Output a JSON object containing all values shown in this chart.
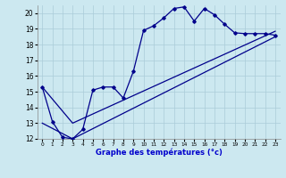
{
  "xlabel": "Graphe des températures (°c)",
  "xlim": [
    -0.5,
    23.5
  ],
  "ylim": [
    12,
    20.5
  ],
  "yticks": [
    12,
    13,
    14,
    15,
    16,
    17,
    18,
    19,
    20
  ],
  "xticks": [
    0,
    1,
    2,
    3,
    4,
    5,
    6,
    7,
    8,
    9,
    10,
    11,
    12,
    13,
    14,
    15,
    16,
    17,
    18,
    19,
    20,
    21,
    22,
    23
  ],
  "bg_color": "#cce8f0",
  "grid_color": "#aaccd8",
  "line_color": "#00008b",
  "line1_x": [
    0,
    1,
    2,
    3,
    4,
    5,
    6,
    7,
    8,
    9,
    10,
    11,
    12,
    13,
    14,
    15,
    16,
    17,
    18,
    19,
    20,
    21,
    22,
    23
  ],
  "line1_y": [
    15.3,
    13.1,
    12.1,
    12.0,
    12.6,
    15.1,
    15.3,
    15.3,
    14.6,
    16.3,
    18.9,
    19.2,
    19.7,
    20.3,
    20.4,
    19.5,
    20.3,
    19.9,
    19.3,
    18.75,
    18.7,
    18.7,
    18.7,
    18.6
  ],
  "line2_x": [
    0,
    3,
    23
  ],
  "line2_y": [
    13.0,
    12.0,
    18.5
  ],
  "line3_x": [
    0,
    3,
    23
  ],
  "line3_y": [
    15.3,
    13.0,
    18.85
  ]
}
